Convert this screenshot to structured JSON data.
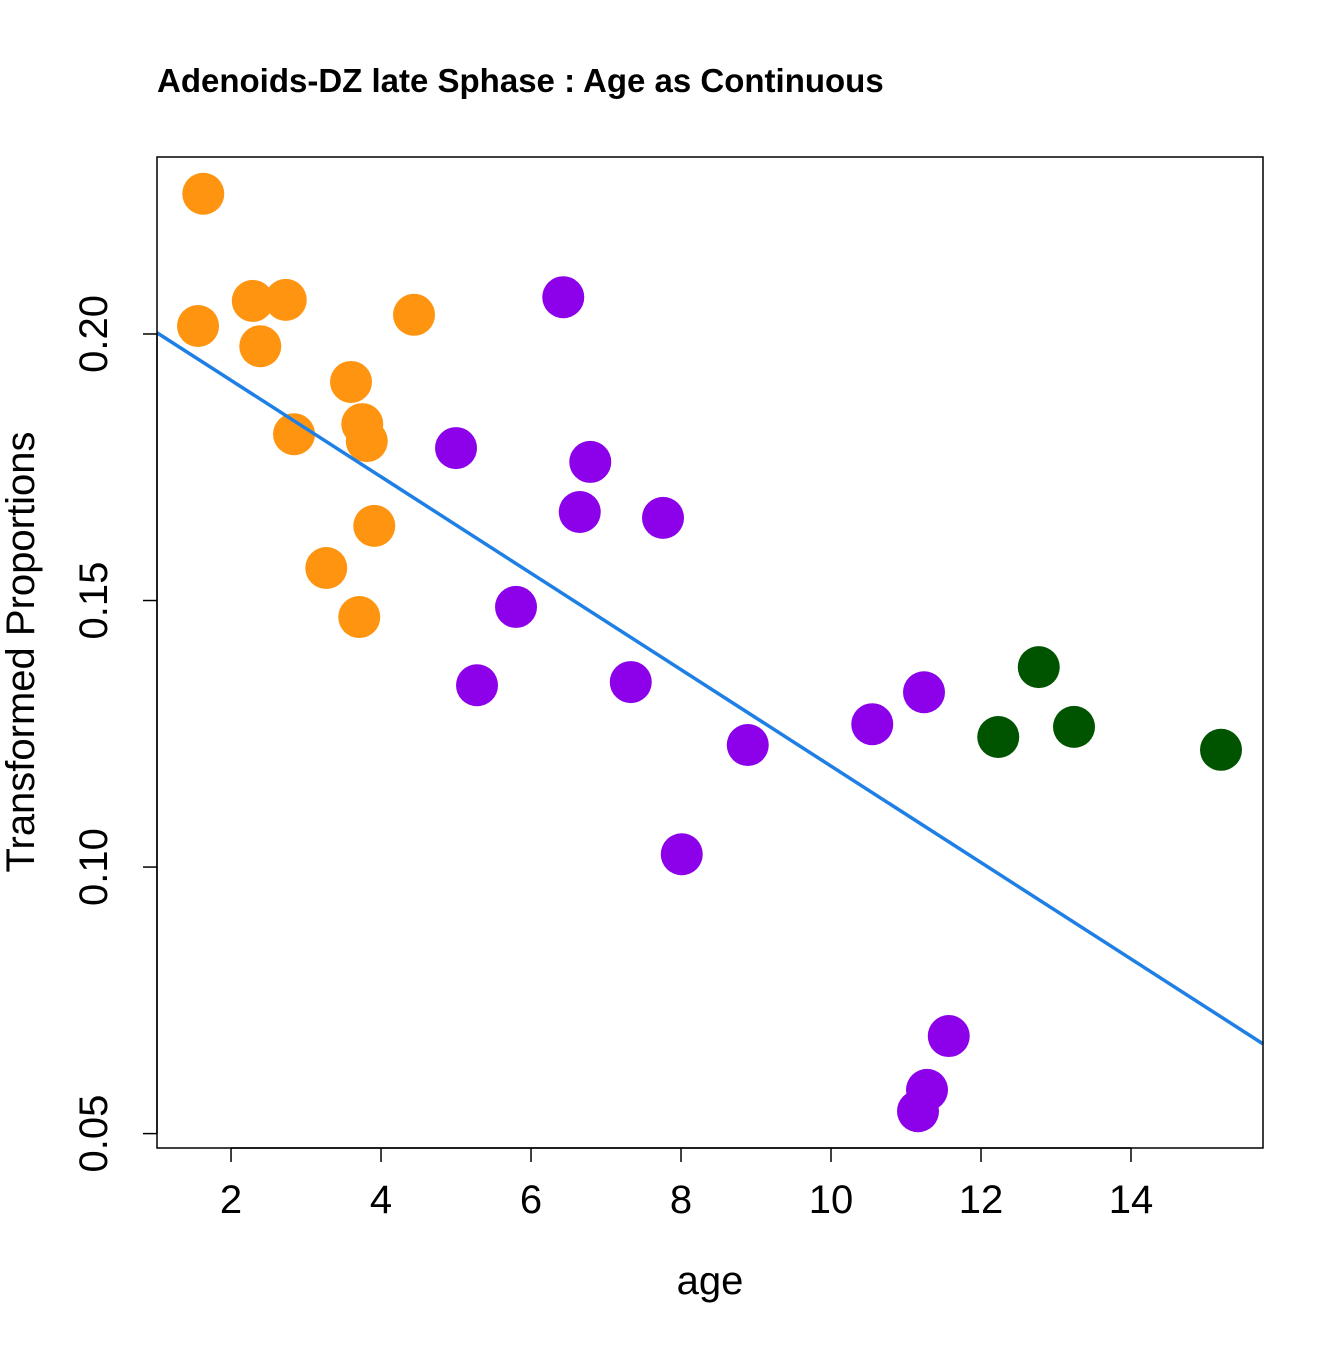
{
  "chart_data": {
    "type": "scatter",
    "title": "Adenoids-DZ late Sphase : Age as Continuous",
    "xlabel": "age",
    "ylabel": "Transformed Proportions",
    "xlim": [
      1.013,
      15.76
    ],
    "ylim": [
      0.0473,
      0.2332
    ],
    "xticks": [
      2,
      4,
      6,
      8,
      10,
      12,
      14
    ],
    "xtick_labels": [
      "2",
      "4",
      "6",
      "8",
      "10",
      "12",
      "14"
    ],
    "yticks": [
      0.05,
      0.1,
      0.15,
      0.2
    ],
    "ytick_labels": [
      "0.05",
      "0.10",
      "0.15",
      "0.20"
    ],
    "grid": false,
    "series": [
      {
        "name": "orange-group",
        "color": "#FF9410",
        "x": [
          1.63,
          1.56,
          2.29,
          2.73,
          2.39,
          4.44,
          3.6,
          3.75,
          3.81,
          2.84,
          3.91,
          3.27,
          3.71
        ],
        "y": [
          0.2263,
          0.2015,
          0.2062,
          0.2064,
          0.1977,
          0.2036,
          0.191,
          0.1831,
          0.1799,
          0.1812,
          0.164,
          0.1561,
          0.1469
        ]
      },
      {
        "name": "purple-group",
        "color": "#8C00EA",
        "x": [
          6.43,
          5.0,
          6.79,
          6.65,
          7.76,
          5.8,
          5.28,
          7.33,
          8.89,
          8.01,
          10.55,
          11.24,
          11.57,
          11.28,
          11.16
        ],
        "y": [
          0.2069,
          0.1786,
          0.176,
          0.1666,
          0.1655,
          0.1488,
          0.1341,
          0.1347,
          0.1229,
          0.1024,
          0.1268,
          0.1328,
          0.0683,
          0.0582,
          0.0542
        ]
      },
      {
        "name": "green-group",
        "color": "#005400",
        "x": [
          12.77,
          12.23,
          13.24,
          15.2
        ],
        "y": [
          0.1375,
          0.1244,
          0.1263,
          0.122
        ]
      }
    ],
    "fit_line": {
      "intercept": 0.2094,
      "slope": -0.009046,
      "color": "#1E80E4"
    }
  }
}
